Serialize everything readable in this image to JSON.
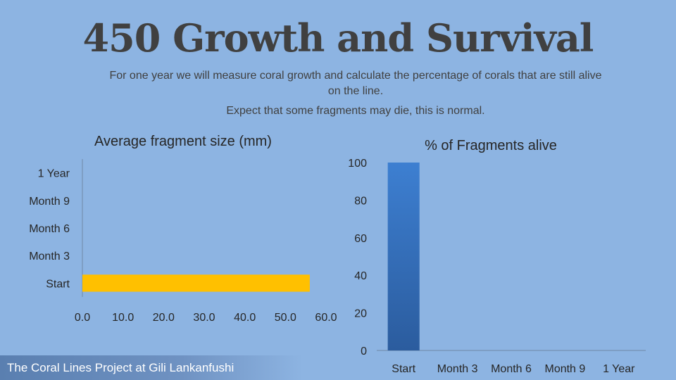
{
  "slide": {
    "title": "450 Growth and Survival",
    "subtitle_line1": "For one year we will measure coral growth and calculate the percentage of corals that are still alive on the line.",
    "subtitle_line2": "Expect that some fragments may die, this is normal.",
    "footer": "The Coral Lines Project at Gili Lankanfushi"
  },
  "colors": {
    "background": "#8db4e2",
    "size_bar": "#ffc000",
    "alive_bar_top": "#3d7fd1",
    "alive_bar_bottom": "#2b5c9e",
    "axis": "#6f87a6"
  },
  "chart_data": [
    {
      "type": "bar",
      "orientation": "horizontal",
      "title": "Average fragment size (mm)",
      "categories": [
        "Start",
        "Month 3",
        "Month 6",
        "Month 9",
        "1 Year"
      ],
      "values": [
        56,
        null,
        null,
        null,
        null
      ],
      "xlim": [
        0,
        60
      ],
      "xticks": [
        "0.0",
        "10.0",
        "20.0",
        "30.0",
        "40.0",
        "50.0",
        "60.0"
      ],
      "grid": false
    },
    {
      "type": "bar",
      "orientation": "vertical",
      "title": "% of Fragments alive",
      "categories": [
        "Start",
        "Month 3",
        "Month 6",
        "Month 9",
        "1 Year"
      ],
      "values": [
        100,
        null,
        null,
        null,
        null
      ],
      "ylim": [
        0,
        100
      ],
      "yticks": [
        "0",
        "20",
        "40",
        "60",
        "80",
        "100"
      ],
      "grid": false
    }
  ]
}
